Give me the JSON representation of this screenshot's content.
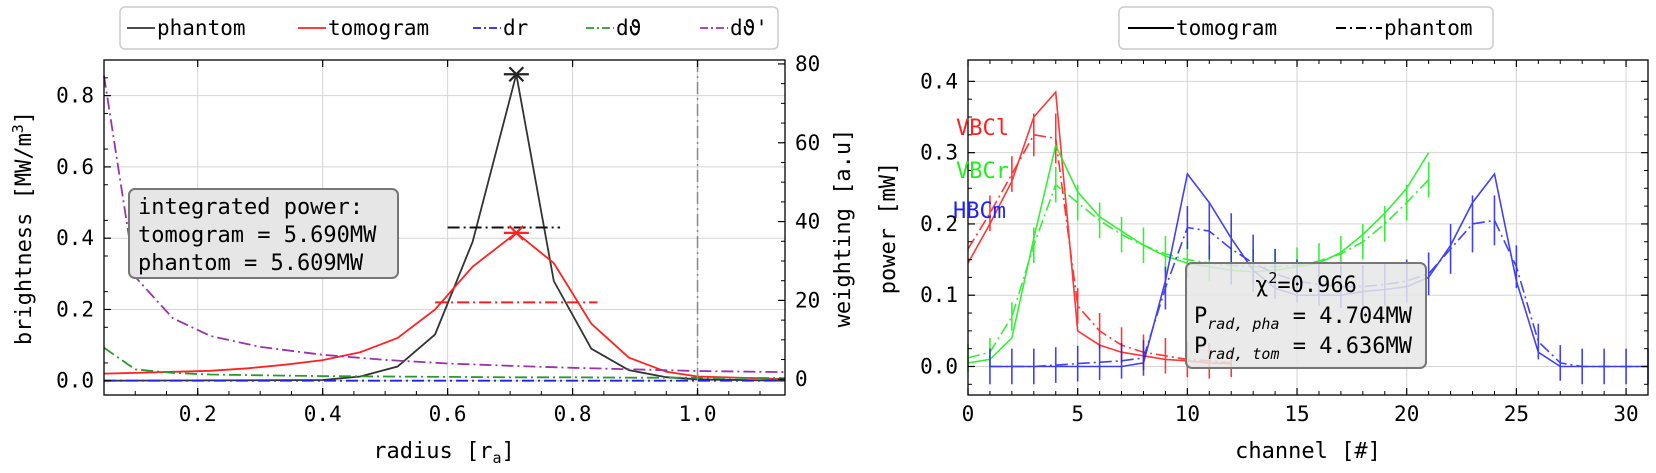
{
  "chart_data": [
    {
      "type": "line",
      "xlabel": "radius [r",
      "xlabel_sub": "a",
      "xlabel_end": "]",
      "ylabel": "brightness [MW/m",
      "ylabel_sup": "3",
      "ylabel_end": "]",
      "y2label": "weighting [a.u]",
      "xlim": [
        0.05,
        1.14
      ],
      "ylim": [
        -0.04,
        0.9
      ],
      "y2lim": [
        -4,
        81
      ],
      "xticks": [
        0.2,
        0.4,
        0.6,
        0.8,
        1.0
      ],
      "xtick_labels": [
        "0.2",
        "0.4",
        "0.6",
        "0.8",
        "1.0"
      ],
      "yticks": [
        0.0,
        0.2,
        0.4,
        0.6,
        0.8
      ],
      "ytick_labels": [
        "0.0",
        "0.2",
        "0.4",
        "0.6",
        "0.8"
      ],
      "y2ticks": [
        0,
        20,
        40,
        60,
        80
      ],
      "y2tick_labels": [
        "0",
        "20",
        "40",
        "60",
        "80"
      ],
      "grid": true,
      "legend_position": "top, above axes",
      "legend": [
        {
          "label": "phantom",
          "color": "#333333",
          "style": "solid"
        },
        {
          "label": "tomogram",
          "color": "#ff2222",
          "style": "solid"
        },
        {
          "label": "dr",
          "color": "#2222dd",
          "style": "dashdot"
        },
        {
          "label": "dϑ",
          "color": "#2a9a2a",
          "style": "dashdot"
        },
        {
          "label": "dϑ'",
          "color": "#9933aa",
          "style": "dashdot"
        }
      ],
      "series": [
        {
          "name": "phantom",
          "color": "#333333",
          "axis": "left",
          "x": [
            0.05,
            0.4,
            0.46,
            0.52,
            0.58,
            0.64,
            0.71,
            0.77,
            0.83,
            0.89,
            0.95,
            1.0,
            1.14
          ],
          "y": [
            0.0,
            0.002,
            0.012,
            0.04,
            0.13,
            0.39,
            0.86,
            0.28,
            0.09,
            0.03,
            0.01,
            0.004,
            0.0
          ]
        },
        {
          "name": "tomogram",
          "color": "#ff2222",
          "axis": "left",
          "x": [
            0.05,
            0.1,
            0.16,
            0.22,
            0.28,
            0.34,
            0.4,
            0.46,
            0.52,
            0.58,
            0.64,
            0.71,
            0.77,
            0.83,
            0.89,
            0.95,
            1.0,
            1.14
          ],
          "y": [
            0.02,
            0.022,
            0.025,
            0.028,
            0.035,
            0.045,
            0.058,
            0.08,
            0.12,
            0.2,
            0.32,
            0.415,
            0.33,
            0.16,
            0.065,
            0.025,
            0.012,
            0.005
          ]
        },
        {
          "name": "dr",
          "color": "#2222dd",
          "axis": "left",
          "dash": true,
          "x": [
            0.05,
            1.14
          ],
          "y": [
            0.0,
            0.0
          ]
        },
        {
          "name": "dϑ",
          "color": "#2a9a2a",
          "axis": "right",
          "dash": true,
          "x": [
            0.05,
            0.1,
            0.16,
            0.22,
            0.3,
            0.4,
            0.5,
            0.6,
            0.7,
            0.8,
            0.9,
            1.0,
            1.14
          ],
          "y": [
            8,
            2.5,
            1.6,
            1.2,
            1.0,
            0.8,
            0.7,
            0.6,
            0.5,
            0.5,
            0.4,
            0.4,
            0.3
          ]
        },
        {
          "name": "dϑ'",
          "color": "#9933aa",
          "axis": "right",
          "dash": true,
          "x": [
            0.05,
            0.1,
            0.16,
            0.22,
            0.3,
            0.4,
            0.5,
            0.6,
            0.7,
            0.8,
            0.9,
            1.0,
            1.14
          ],
          "y": [
            77,
            26,
            15.5,
            11,
            8.2,
            6.2,
            4.9,
            4.0,
            3.4,
            2.9,
            2.5,
            2.1,
            1.8
          ]
        }
      ],
      "markers": [
        {
          "name": "phantom-peak",
          "color": "#222222",
          "x": 0.71,
          "y": 0.86,
          "xerr": 0.02
        },
        {
          "name": "tomogram-peak",
          "color": "#ff2222",
          "x": 0.71,
          "y": 0.415,
          "xerr": 0.02
        }
      ],
      "width_bars": [
        {
          "name": "phantom-fwhm",
          "color": "#111111",
          "y": 0.43,
          "x1": 0.6,
          "x2": 0.78
        },
        {
          "name": "tomogram-fwhm",
          "color": "#ee2222",
          "y": 0.22,
          "x1": 0.58,
          "x2": 0.84
        }
      ],
      "vline": {
        "x": 1.0,
        "color": "#888888"
      },
      "annotation": {
        "lines": [
          "integrated power:",
          "tomogram = 5.690MW",
          "phantom = 5.609MW"
        ]
      }
    },
    {
      "type": "line",
      "xlabel": "channel [#]",
      "ylabel": "power [mW]",
      "xlim": [
        0,
        31
      ],
      "ylim": [
        -0.04,
        0.43
      ],
      "xticks": [
        0,
        5,
        10,
        15,
        20,
        25,
        30
      ],
      "xtick_labels": [
        "0",
        "5",
        "10",
        "15",
        "20",
        "25",
        "30"
      ],
      "yticks": [
        0.0,
        0.1,
        0.2,
        0.3,
        0.4
      ],
      "ytick_labels": [
        "0.0",
        "0.1",
        "0.2",
        "0.3",
        "0.4"
      ],
      "grid": true,
      "legend_position": "top, above axes",
      "legend": [
        {
          "label": "tomogram",
          "style": "solid"
        },
        {
          "label": "phantom",
          "style": "dashdot"
        }
      ],
      "groups": [
        {
          "name": "VBCl",
          "color": "#ff2222",
          "x": [
            0,
            1,
            2,
            3,
            4,
            5,
            6,
            7,
            8,
            9,
            10,
            11,
            12
          ],
          "tomogram": [
            0.145,
            0.2,
            0.26,
            0.35,
            0.385,
            0.05,
            0.03,
            0.02,
            0.015,
            0.01,
            0.008,
            0.005,
            0.004
          ],
          "phantom": [
            0.165,
            0.215,
            0.27,
            0.325,
            0.32,
            0.085,
            0.05,
            0.03,
            0.02,
            0.015,
            0.01,
            0.008,
            0.005
          ],
          "err": [
            0,
            0.025,
            0.025,
            0.03,
            0.035,
            0.025,
            0.025,
            0.025,
            0.025,
            0.025,
            0.025,
            0.025,
            0.02
          ]
        },
        {
          "name": "VBCr",
          "color": "#22ee22",
          "x": [
            0,
            1,
            2,
            3,
            4,
            5,
            6,
            7,
            8,
            9,
            10,
            11,
            12,
            13,
            14,
            15,
            16,
            17,
            18,
            19,
            20,
            21
          ],
          "tomogram": [
            0.005,
            0.01,
            0.04,
            0.18,
            0.31,
            0.245,
            0.21,
            0.19,
            0.17,
            0.155,
            0.145,
            0.14,
            0.135,
            0.133,
            0.135,
            0.14,
            0.145,
            0.16,
            0.185,
            0.215,
            0.25,
            0.3
          ],
          "phantom": [
            0.012,
            0.02,
            0.07,
            0.17,
            0.255,
            0.23,
            0.205,
            0.185,
            0.17,
            0.158,
            0.15,
            0.145,
            0.142,
            0.14,
            0.14,
            0.142,
            0.148,
            0.158,
            0.175,
            0.2,
            0.23,
            0.262
          ],
          "err": [
            0.02,
            0.02,
            0.02,
            0.025,
            0.025,
            0.025,
            0.025,
            0.025,
            0.025,
            0.025,
            0.025,
            0.025,
            0.025,
            0.025,
            0.025,
            0.025,
            0.025,
            0.025,
            0.025,
            0.025,
            0.025,
            0.025
          ]
        },
        {
          "name": "HBCm",
          "color": "#2222ee",
          "x": [
            1,
            2,
            3,
            4,
            5,
            6,
            7,
            8,
            9,
            10,
            11,
            12,
            13,
            14,
            15,
            16,
            17,
            18,
            19,
            20,
            21,
            22,
            23,
            24,
            25,
            26,
            27,
            28,
            29,
            30,
            31
          ],
          "tomogram": [
            0.0,
            0.0,
            0.0,
            0.0,
            0.0,
            0.0,
            0.0,
            0.005,
            0.12,
            0.27,
            0.23,
            0.18,
            0.135,
            0.11,
            0.1,
            0.1,
            0.1,
            0.105,
            0.108,
            0.112,
            0.125,
            0.17,
            0.23,
            0.27,
            0.12,
            0.02,
            0.0,
            0.0,
            0.0,
            0.0,
            0.0
          ],
          "phantom": [
            0.0,
            0.0,
            0.0,
            0.002,
            0.004,
            0.006,
            0.008,
            0.012,
            0.11,
            0.195,
            0.19,
            0.165,
            0.145,
            0.13,
            0.12,
            0.115,
            0.112,
            0.112,
            0.115,
            0.12,
            0.13,
            0.165,
            0.2,
            0.205,
            0.14,
            0.035,
            0.005,
            0.0,
            0.0,
            0.0,
            0.0
          ],
          "err": [
            0.025,
            0.025,
            0.025,
            0.025,
            0.025,
            0.025,
            0.025,
            0.025,
            0.03,
            0.03,
            0.04,
            0.05,
            0.04,
            0.035,
            0.03,
            0.03,
            0.03,
            0.03,
            0.03,
            0.03,
            0.03,
            0.035,
            0.04,
            0.035,
            0.03,
            0.025,
            0.025,
            0.025,
            0.025,
            0.025,
            0.025
          ]
        }
      ],
      "annotation": {
        "chi_label": "χ",
        "chi_sup": "2",
        "chi_value": "=0.966",
        "pha_label": "P",
        "pha_sub": "rad, pha",
        "pha_value": " = 4.704MW",
        "tom_label": "P",
        "tom_sub": "rad, tom",
        "tom_value": " = 4.636MW"
      }
    }
  ]
}
